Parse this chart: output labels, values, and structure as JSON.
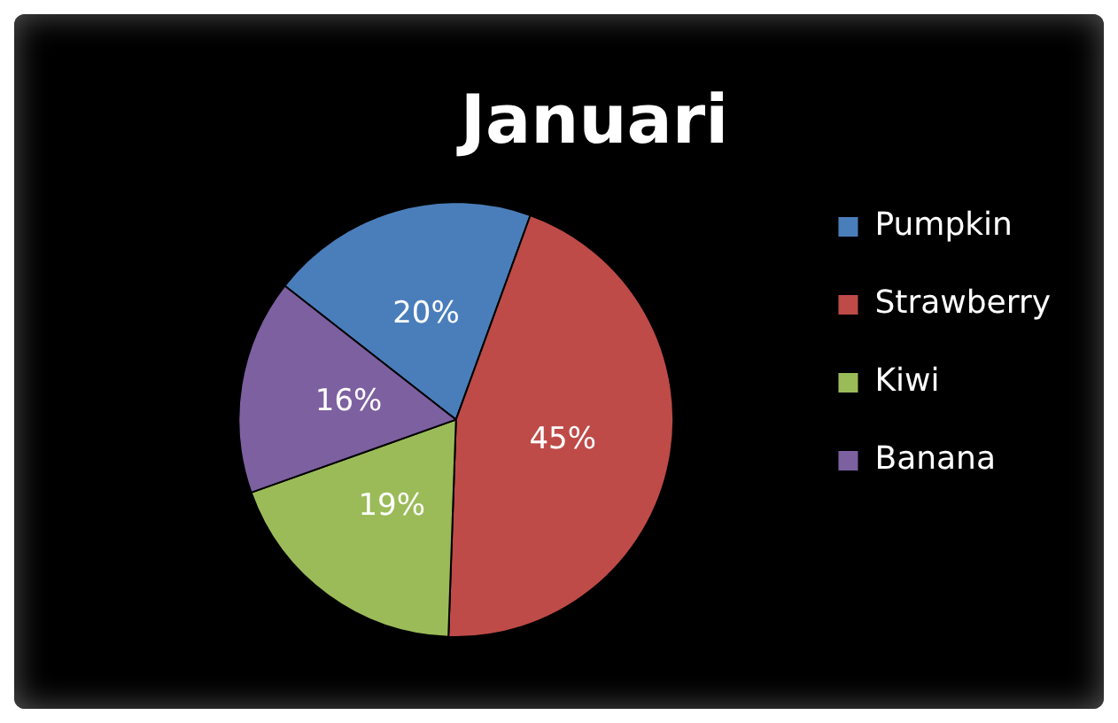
{
  "chart_data": {
    "type": "pie",
    "title": "Januari",
    "categories": [
      "Pumpkin",
      "Strawberry",
      "Kiwi",
      "Banana"
    ],
    "values": [
      20,
      45,
      19,
      16
    ],
    "colors": [
      "#4a7ebb",
      "#be4b48",
      "#9bbb59",
      "#7d60a0"
    ],
    "value_labels": [
      "20%",
      "45%",
      "19%",
      "16%"
    ],
    "legend": "right"
  }
}
